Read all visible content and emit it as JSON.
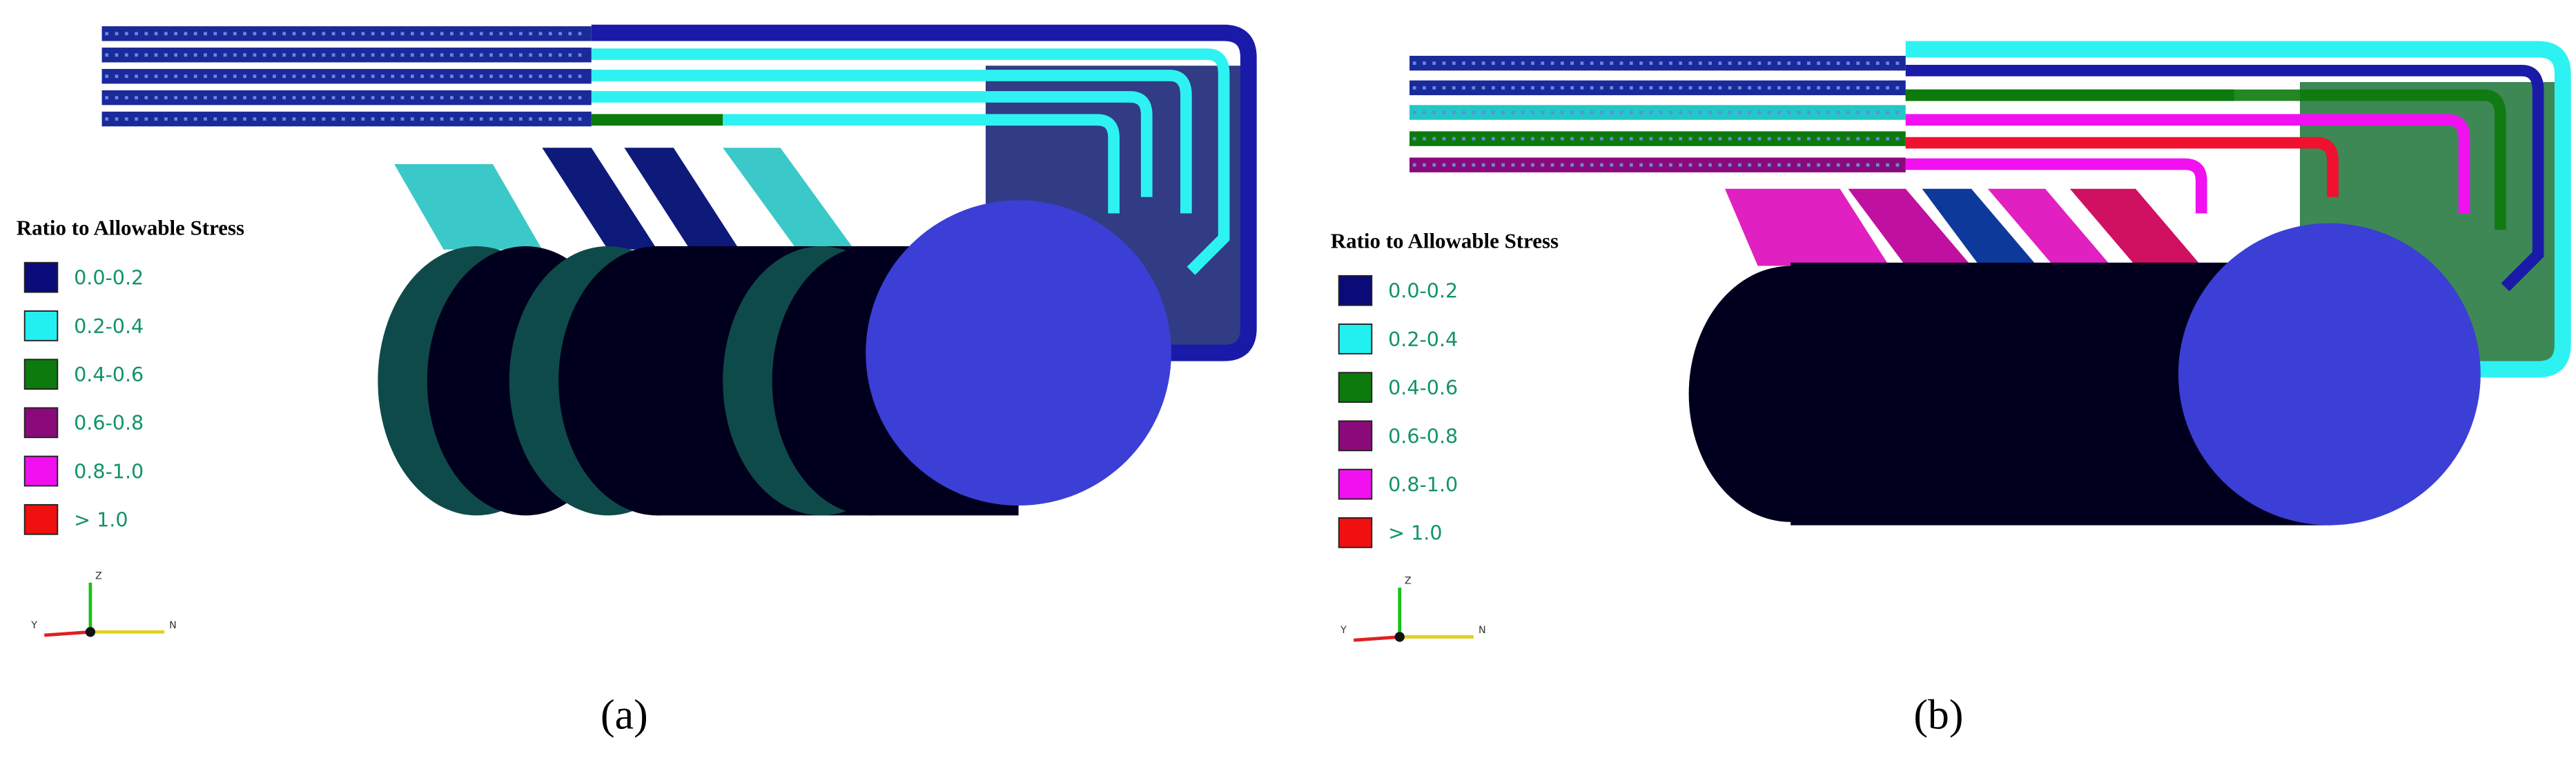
{
  "panels": [
    {
      "legend": {
        "title": "Ratio to Allowable Stress",
        "items": [
          {
            "label": "0.0-0.2",
            "color": "#0a0a78"
          },
          {
            "label": "0.2-0.4",
            "color": "#22f0f0"
          },
          {
            "label": "0.4-0.6",
            "color": "#0c7a0c"
          },
          {
            "label": "0.6-0.8",
            "color": "#8a0a7a"
          },
          {
            "label": "0.8-1.0",
            "color": "#f010f0"
          },
          {
            "label": "> 1.0",
            "color": "#f01010"
          }
        ]
      },
      "axes": {
        "z": "Z",
        "y": "Y",
        "x": "N"
      },
      "caption": "(a)"
    },
    {
      "legend": {
        "title": "Ratio to Allowable Stress",
        "items": [
          {
            "label": "0.0-0.2",
            "color": "#0a0a78"
          },
          {
            "label": "0.2-0.4",
            "color": "#22f0f0"
          },
          {
            "label": "0.4-0.6",
            "color": "#0c7a0c"
          },
          {
            "label": "0.6-0.8",
            "color": "#8a0a7a"
          },
          {
            "label": "0.8-1.0",
            "color": "#f010f0"
          },
          {
            "label": "> 1.0",
            "color": "#f01010"
          }
        ]
      },
      "axes": {
        "z": "Z",
        "y": "Y",
        "x": "N"
      },
      "caption": "(b)"
    }
  ]
}
